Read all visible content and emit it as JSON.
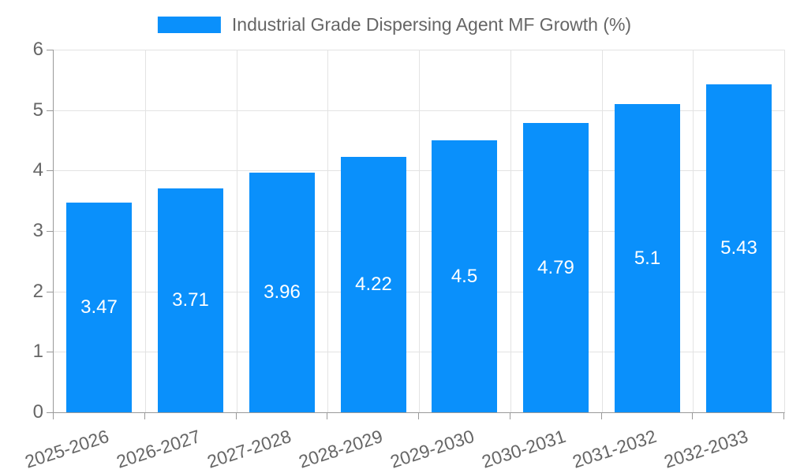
{
  "legend": {
    "label": "Industrial Grade Dispersing Agent MF Growth (%)"
  },
  "colors": {
    "bar": "#0a90fb",
    "axis_line": "#999999",
    "gridline": "#e3e3e3",
    "tick_text": "#666666",
    "value_label_text": "#ffffff"
  },
  "chart_data": {
    "type": "bar",
    "title": "Industrial Grade Dispersing Agent MF Growth (%)",
    "categories": [
      "2025-2026",
      "2026-2027",
      "2027-2028",
      "2028-2029",
      "2029-2030",
      "2030-2031",
      "2031-2032",
      "2032-2033"
    ],
    "values": [
      3.47,
      3.71,
      3.96,
      4.22,
      4.5,
      4.79,
      5.1,
      5.43
    ],
    "xlabel": "",
    "ylabel": "",
    "ylim": [
      0,
      6
    ],
    "yticks": [
      0,
      1,
      2,
      3,
      4,
      5,
      6
    ],
    "grid": true,
    "legend_position": "top",
    "bar_color": "#0a90fb",
    "value_labels_inside_bars": true,
    "x_label_rotation_deg": -18
  }
}
